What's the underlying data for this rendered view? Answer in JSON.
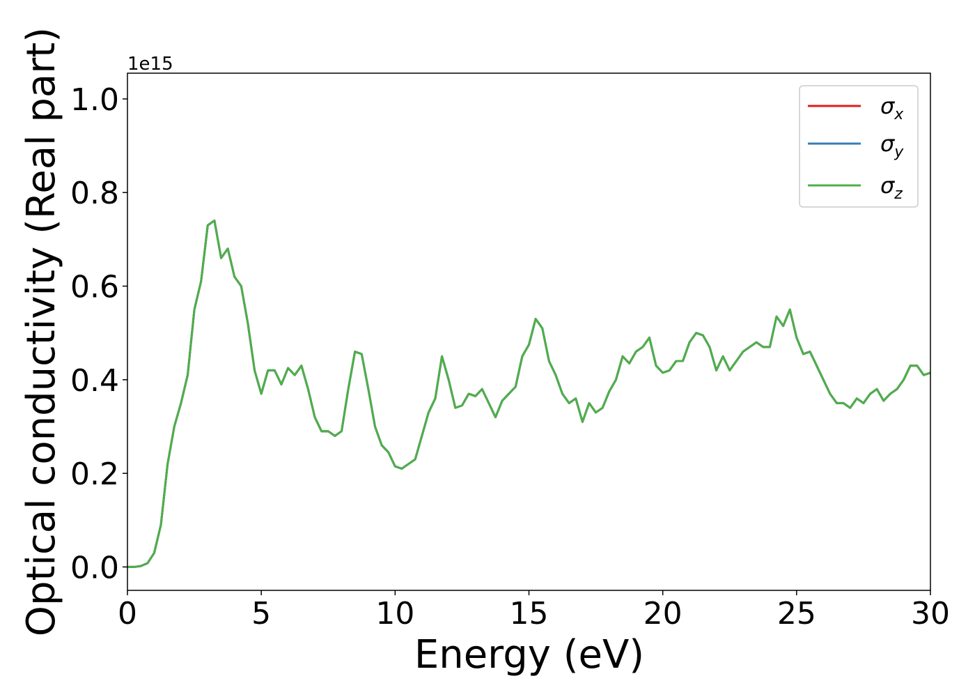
{
  "chart_data": {
    "type": "line",
    "x_label": "Energy (eV)",
    "y_label": "Optical conductivity (Real part)",
    "y_offset_label": "1e15",
    "x": [
      0,
      0.25,
      0.5,
      0.75,
      1,
      1.25,
      1.5,
      1.75,
      2,
      2.25,
      2.5,
      2.75,
      3,
      3.25,
      3.5,
      3.75,
      4,
      4.25,
      4.5,
      4.75,
      5,
      5.25,
      5.5,
      5.75,
      6,
      6.25,
      6.5,
      6.75,
      7,
      7.25,
      7.5,
      7.75,
      8,
      8.25,
      8.5,
      8.75,
      9,
      9.25,
      9.5,
      9.75,
      10,
      10.25,
      10.5,
      10.75,
      11,
      11.25,
      11.5,
      11.75,
      12,
      12.25,
      12.5,
      12.75,
      13,
      13.25,
      13.5,
      13.75,
      14,
      14.25,
      14.5,
      14.75,
      15,
      15.25,
      15.5,
      15.75,
      16,
      16.25,
      16.5,
      16.75,
      17,
      17.25,
      17.5,
      17.75,
      18,
      18.25,
      18.5,
      18.75,
      19,
      19.25,
      19.5,
      19.75,
      20,
      20.25,
      20.5,
      20.75,
      21,
      21.25,
      21.5,
      21.75,
      22,
      22.25,
      22.5,
      22.75,
      23,
      23.25,
      23.5,
      23.75,
      24,
      24.25,
      24.5,
      24.75,
      25,
      25.25,
      25.5,
      25.75,
      26,
      26.25,
      26.5,
      26.75,
      27,
      27.25,
      27.5,
      27.75,
      28,
      28.25,
      28.5,
      28.75,
      29,
      29.25,
      29.5,
      29.75,
      30
    ],
    "series": [
      {
        "name": "σx",
        "color": "#e41a1c",
        "values": [
          0.0,
          0.0,
          0.002,
          0.008,
          0.03,
          0.09,
          0.22,
          0.3,
          0.35,
          0.41,
          0.55,
          0.61,
          0.73,
          0.74,
          0.66,
          0.68,
          0.62,
          0.6,
          0.52,
          0.42,
          0.37,
          0.42,
          0.42,
          0.39,
          0.425,
          0.41,
          0.43,
          0.38,
          0.32,
          0.29,
          0.29,
          0.28,
          0.29,
          0.38,
          0.46,
          0.455,
          0.38,
          0.3,
          0.26,
          0.245,
          0.215,
          0.21,
          0.22,
          0.23,
          0.28,
          0.33,
          0.36,
          0.45,
          0.4,
          0.34,
          0.345,
          0.37,
          0.365,
          0.38,
          0.35,
          0.32,
          0.355,
          0.37,
          0.385,
          0.45,
          0.475,
          0.53,
          0.51,
          0.44,
          0.41,
          0.37,
          0.35,
          0.36,
          0.31,
          0.35,
          0.33,
          0.34,
          0.375,
          0.4,
          0.45,
          0.435,
          0.46,
          0.47,
          0.49,
          0.43,
          0.415,
          0.42,
          0.44,
          0.44,
          0.48,
          0.5,
          0.495,
          0.47,
          0.42,
          0.45,
          0.42,
          0.44,
          0.46,
          0.47,
          0.48,
          0.47,
          0.47,
          0.535,
          0.515,
          0.55,
          0.49,
          0.455,
          0.46,
          0.43,
          0.4,
          0.37,
          0.35,
          0.35,
          0.34,
          0.36,
          0.35,
          0.37,
          0.38,
          0.355,
          0.37,
          0.38,
          0.4,
          0.43,
          0.43,
          0.41,
          0.415
        ]
      },
      {
        "name": "σy",
        "color": "#377eb8",
        "values": [
          0.0,
          0.0,
          0.002,
          0.008,
          0.03,
          0.09,
          0.22,
          0.3,
          0.35,
          0.41,
          0.55,
          0.61,
          0.73,
          0.74,
          0.66,
          0.68,
          0.62,
          0.6,
          0.52,
          0.42,
          0.37,
          0.42,
          0.42,
          0.39,
          0.425,
          0.41,
          0.43,
          0.38,
          0.32,
          0.29,
          0.29,
          0.28,
          0.29,
          0.38,
          0.46,
          0.455,
          0.38,
          0.3,
          0.26,
          0.245,
          0.215,
          0.21,
          0.22,
          0.23,
          0.28,
          0.33,
          0.36,
          0.45,
          0.4,
          0.34,
          0.345,
          0.37,
          0.365,
          0.38,
          0.35,
          0.32,
          0.355,
          0.37,
          0.385,
          0.45,
          0.475,
          0.53,
          0.51,
          0.44,
          0.41,
          0.37,
          0.35,
          0.36,
          0.31,
          0.35,
          0.33,
          0.34,
          0.375,
          0.4,
          0.45,
          0.435,
          0.46,
          0.47,
          0.49,
          0.43,
          0.415,
          0.42,
          0.44,
          0.44,
          0.48,
          0.5,
          0.495,
          0.47,
          0.42,
          0.45,
          0.42,
          0.44,
          0.46,
          0.47,
          0.48,
          0.47,
          0.47,
          0.535,
          0.515,
          0.55,
          0.49,
          0.455,
          0.46,
          0.43,
          0.4,
          0.37,
          0.35,
          0.35,
          0.34,
          0.36,
          0.35,
          0.37,
          0.38,
          0.355,
          0.37,
          0.38,
          0.4,
          0.43,
          0.43,
          0.41,
          0.415
        ]
      },
      {
        "name": "σz",
        "color": "#4daf4a",
        "values": [
          0.0,
          0.0,
          0.002,
          0.008,
          0.03,
          0.09,
          0.22,
          0.3,
          0.35,
          0.41,
          0.55,
          0.61,
          0.73,
          0.74,
          0.66,
          0.68,
          0.62,
          0.6,
          0.52,
          0.42,
          0.37,
          0.42,
          0.42,
          0.39,
          0.425,
          0.41,
          0.43,
          0.38,
          0.32,
          0.29,
          0.29,
          0.28,
          0.29,
          0.38,
          0.46,
          0.455,
          0.38,
          0.3,
          0.26,
          0.245,
          0.215,
          0.21,
          0.22,
          0.23,
          0.28,
          0.33,
          0.36,
          0.45,
          0.4,
          0.34,
          0.345,
          0.37,
          0.365,
          0.38,
          0.35,
          0.32,
          0.355,
          0.37,
          0.385,
          0.45,
          0.475,
          0.53,
          0.51,
          0.44,
          0.41,
          0.37,
          0.35,
          0.36,
          0.31,
          0.35,
          0.33,
          0.34,
          0.375,
          0.4,
          0.45,
          0.435,
          0.46,
          0.47,
          0.49,
          0.43,
          0.415,
          0.42,
          0.44,
          0.44,
          0.48,
          0.5,
          0.495,
          0.47,
          0.42,
          0.45,
          0.42,
          0.44,
          0.46,
          0.47,
          0.48,
          0.47,
          0.47,
          0.535,
          0.515,
          0.55,
          0.49,
          0.455,
          0.46,
          0.43,
          0.4,
          0.37,
          0.35,
          0.35,
          0.34,
          0.36,
          0.35,
          0.37,
          0.38,
          0.355,
          0.37,
          0.38,
          0.4,
          0.43,
          0.43,
          0.41,
          0.415
        ]
      }
    ],
    "xlim": [
      0,
      30
    ],
    "xticks": [
      0,
      5,
      10,
      15,
      20,
      25,
      30
    ],
    "ylim": [
      -0.05,
      1.055
    ],
    "yticks": [
      {
        "value": 0,
        "label": "0.0"
      },
      {
        "value": 0.2,
        "label": "0.2"
      },
      {
        "value": 0.4,
        "label": "0.4"
      },
      {
        "value": 0.6,
        "label": "0.6"
      },
      {
        "value": 0.8,
        "label": "0.8"
      },
      {
        "value": 1,
        "label": "1.0"
      }
    ],
    "grid": false,
    "legend": "upper right"
  }
}
